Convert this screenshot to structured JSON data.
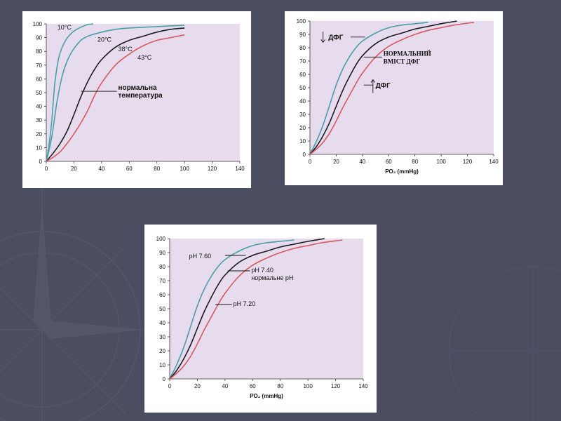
{
  "colors": {
    "background": "#4b4d60",
    "plot_background": "#e6dced",
    "blue": "#4a9ea8",
    "black": "#1b1b22",
    "red": "#d9575f"
  },
  "chart_data": [
    {
      "type": "line",
      "xlim": [
        0,
        140
      ],
      "ylim": [
        0,
        100
      ],
      "x_ticks": [
        "0",
        "20",
        "40",
        "60",
        "80",
        "100",
        "120",
        "140"
      ],
      "y_ticks": [
        "0",
        "10",
        "20",
        "30",
        "40",
        "50",
        "60",
        "70",
        "80",
        "90",
        "100"
      ],
      "xlabel": "",
      "annotations": {
        "normal": "нормальна\nтемпература"
      },
      "series": [
        {
          "name": "10°C",
          "color": "#4a9ea8",
          "x": [
            0,
            2,
            4,
            6,
            8,
            10,
            14,
            18,
            22,
            26,
            30,
            34
          ],
          "y": [
            0,
            12,
            30,
            55,
            70,
            79,
            88,
            93,
            96,
            98,
            99.5,
            100
          ]
        },
        {
          "name": "20°C",
          "color": "#4a9ea8",
          "x": [
            0,
            4,
            8,
            12,
            16,
            20,
            25,
            30,
            40,
            50,
            60,
            80,
            100
          ],
          "y": [
            0,
            18,
            45,
            64,
            75,
            82,
            88,
            91,
            94,
            96,
            97,
            98,
            99
          ]
        },
        {
          "name": "38°C",
          "color": "#1b1b22",
          "x": [
            0,
            5,
            10,
            15,
            20,
            25,
            30,
            35,
            40,
            50,
            60,
            70,
            80,
            90,
            100
          ],
          "y": [
            0,
            6,
            13,
            22,
            34,
            47,
            58,
            67,
            74,
            83,
            88,
            91,
            94,
            96,
            97
          ]
        },
        {
          "name": "43°C",
          "color": "#d9575f",
          "x": [
            0,
            5,
            10,
            15,
            20,
            25,
            30,
            35,
            40,
            50,
            60,
            70,
            80,
            90,
            100
          ],
          "y": [
            0,
            3,
            7,
            13,
            20,
            28,
            37,
            48,
            57,
            70,
            78,
            84,
            88,
            90,
            92
          ]
        }
      ]
    },
    {
      "type": "line",
      "xlim": [
        0,
        140
      ],
      "ylim": [
        0,
        100
      ],
      "x_ticks": [
        "0",
        "20",
        "40",
        "60",
        "80",
        "100",
        "120",
        "140"
      ],
      "y_ticks": [
        "0",
        "10",
        "20",
        "30",
        "40",
        "50",
        "60",
        "70",
        "80",
        "90",
        "100"
      ],
      "xlabel": "PO₂ (mmHg)",
      "annotations": {
        "low": "ДФГ",
        "normal": "НОРМАЛЬНИЙ\nВМІСТ ДФГ",
        "high": "ДФГ"
      },
      "series": [
        {
          "name": "↓ ДФГ",
          "color": "#4a9ea8",
          "x": [
            0,
            5,
            10,
            15,
            20,
            25,
            30,
            35,
            40,
            50,
            60,
            70,
            80,
            90
          ],
          "y": [
            0,
            10,
            22,
            37,
            52,
            64,
            73,
            80,
            85,
            91,
            95,
            97,
            98,
            99
          ]
        },
        {
          "name": "НОРМАЛЬНИЙ ВМІСТ ДФГ",
          "color": "#1b1b22",
          "x": [
            0,
            5,
            10,
            15,
            20,
            25,
            30,
            35,
            40,
            50,
            60,
            70,
            80,
            90,
            100,
            112
          ],
          "y": [
            0,
            6,
            14,
            24,
            36,
            48,
            58,
            67,
            74,
            83,
            88,
            91,
            94,
            96,
            98,
            100
          ]
        },
        {
          "name": "↑ ДФГ",
          "color": "#d9575f",
          "x": [
            0,
            5,
            10,
            15,
            20,
            25,
            30,
            35,
            40,
            50,
            60,
            70,
            80,
            90,
            100,
            110,
            125
          ],
          "y": [
            0,
            4,
            9,
            16,
            25,
            35,
            44,
            53,
            61,
            73,
            81,
            86,
            90,
            93,
            95,
            97,
            99
          ]
        }
      ]
    },
    {
      "type": "line",
      "xlim": [
        0,
        140
      ],
      "ylim": [
        0,
        100
      ],
      "x_ticks": [
        "0",
        "20",
        "40",
        "60",
        "80",
        "100",
        "120",
        "140"
      ],
      "y_ticks": [
        "0",
        "10",
        "20",
        "30",
        "40",
        "50",
        "60",
        "70",
        "80",
        "90",
        "100"
      ],
      "xlabel": "PO₂ (mmHg)",
      "annotations": {
        "ph760": "pH 7.60",
        "ph740": "pH 7.40\nнормальне pH",
        "ph720": "pH 7.20"
      },
      "series": [
        {
          "name": "pH 7.60",
          "color": "#4a9ea8",
          "x": [
            0,
            5,
            10,
            15,
            20,
            25,
            30,
            35,
            40,
            50,
            60,
            70,
            80,
            90
          ],
          "y": [
            0,
            10,
            22,
            37,
            52,
            64,
            73,
            80,
            85,
            91,
            95,
            97,
            98,
            99
          ]
        },
        {
          "name": "pH 7.40",
          "color": "#1b1b22",
          "x": [
            0,
            5,
            10,
            15,
            20,
            25,
            30,
            35,
            40,
            50,
            60,
            70,
            80,
            90,
            100,
            112
          ],
          "y": [
            0,
            6,
            14,
            24,
            36,
            48,
            58,
            67,
            74,
            83,
            88,
            91,
            94,
            96,
            98,
            100
          ]
        },
        {
          "name": "pH 7.20",
          "color": "#d9575f",
          "x": [
            0,
            5,
            10,
            15,
            20,
            25,
            30,
            35,
            40,
            50,
            60,
            70,
            80,
            90,
            100,
            110,
            125
          ],
          "y": [
            0,
            4,
            9,
            16,
            25,
            35,
            44,
            53,
            61,
            73,
            81,
            86,
            90,
            93,
            95,
            97,
            99
          ]
        }
      ]
    }
  ]
}
